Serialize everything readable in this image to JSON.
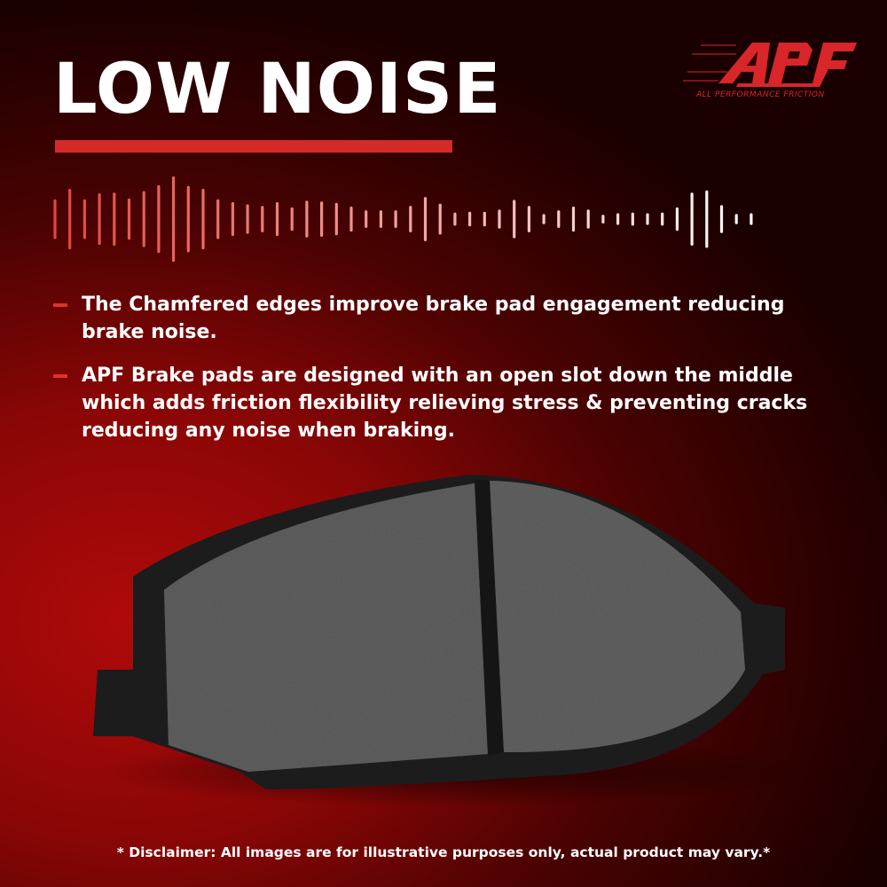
{
  "title": "LOW NOISE",
  "logo": {
    "mark": "APF",
    "tagline": "ALL PERFORMANCE FRICTION"
  },
  "bullets": [
    {
      "text": "The Chamfered edges improve brake pad engagement reducing brake noise."
    },
    {
      "text": "APF Brake pads are designed with an open slot down the middle which adds friction flexibility relieving stress & preventing cracks reducing any noise when braking."
    }
  ],
  "disclaimer": "* Disclaimer: All images are for illustrative purposes only, actual product may vary.*",
  "colors": {
    "accent": "#d42a28",
    "text": "#ffffff",
    "background": "#8a0606"
  },
  "icons": {
    "waveform": "sound-wave-icon",
    "bullet": "dash-icon"
  }
}
